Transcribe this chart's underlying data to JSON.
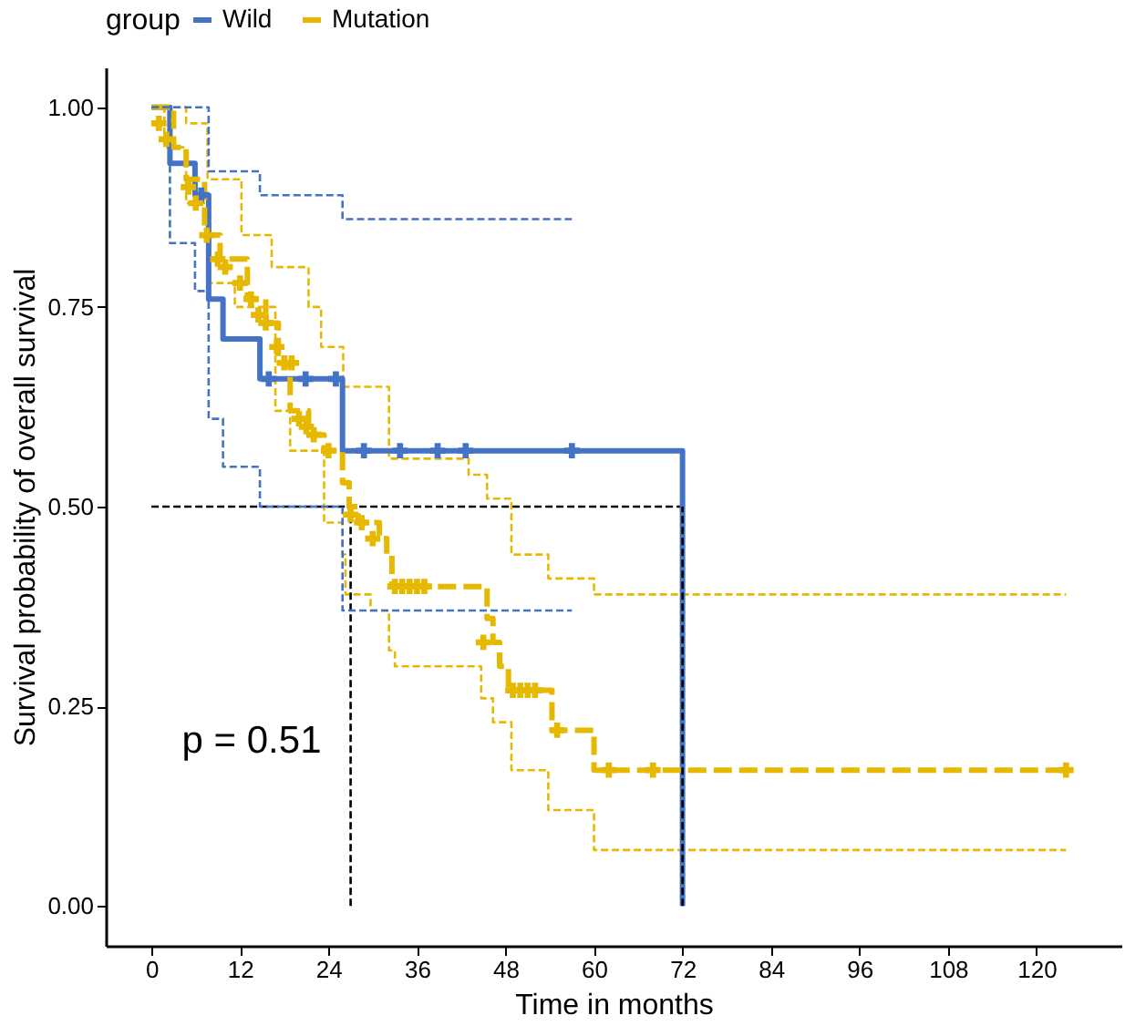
{
  "chart_data": {
    "type": "step",
    "xlabel": "Time in months",
    "ylabel": "Survival probability of overall survival",
    "legend_title": "group",
    "legend": "top",
    "grid": false,
    "annotations": [
      "p = 0.51"
    ],
    "xlim": [
      -6.2,
      131.5
    ],
    "ylim": [
      -0.05,
      1.05
    ],
    "xticks": [
      0,
      12,
      24,
      36,
      48,
      60,
      72,
      84,
      96,
      108,
      120
    ],
    "yticks": [
      {
        "value": 0,
        "label": "0.00"
      },
      {
        "value": 0.25,
        "label": "0.25"
      },
      {
        "value": 0.5,
        "label": "0.50"
      },
      {
        "value": 0.75,
        "label": "0.75"
      },
      {
        "value": 1,
        "label": "1.00"
      }
    ],
    "series": [
      {
        "color": "#e7b800",
        "line_style": "dashed",
        "x": [
          0,
          4.7,
          7.6,
          12.2,
          16.3,
          21.3,
          23,
          26,
          32.2,
          43,
          45.5,
          48.8,
          53.8,
          60,
          124
        ],
        "values": [
          1,
          0.98,
          0.91,
          0.84,
          0.8,
          0.75,
          0.7,
          0.65,
          0.56,
          0.54,
          0.51,
          0.44,
          0.41,
          0.39,
          0.39
        ]
      },
      {
        "color": "#e7b800",
        "line_style": "dashed",
        "x": [
          0,
          1.75,
          4.7,
          7.6,
          11.3,
          16.8,
          18.8,
          23.4,
          25.9,
          26.3,
          29.7,
          32.2,
          33,
          44.7,
          46.3,
          48.8,
          53.8,
          60,
          124
        ],
        "values": [
          1,
          0.95,
          0.88,
          0.78,
          0.75,
          0.62,
          0.57,
          0.48,
          0.44,
          0.39,
          0.37,
          0.32,
          0.3,
          0.26,
          0.23,
          0.17,
          0.12,
          0.07,
          0.07
        ]
      },
      {
        "type": "line",
        "color": "#000000",
        "line_style": "dashed",
        "x": [
          0,
          72
        ],
        "values": [
          0.5,
          0.5
        ]
      },
      {
        "type": "line",
        "color": "#000000",
        "line_style": "dashed",
        "x": [
          27,
          27
        ],
        "values": [
          0,
          0.5
        ]
      },
      {
        "name": "Wild",
        "color": "#4472c4",
        "line_style": "solid",
        "x": [
          0,
          2.5,
          5.9,
          7.75,
          9.7,
          14.7,
          25.9,
          72
        ],
        "values": [
          1,
          0.93,
          0.89,
          0.76,
          0.71,
          0.66,
          0.57,
          0
        ]
      },
      {
        "name": "Mutation",
        "color": "#e7b800",
        "line_style": "dashed",
        "x": [
          0,
          3,
          4.7,
          7.2,
          9.3,
          13,
          15.5,
          17.2,
          18.8,
          21.3,
          23.4,
          25.9,
          26.8,
          28,
          30.9,
          31.9,
          32.6,
          45.5,
          46.3,
          47.2,
          48.4,
          54.3,
          60,
          124
        ],
        "values": [
          1,
          0.95,
          0.91,
          0.84,
          0.81,
          0.76,
          0.73,
          0.68,
          0.62,
          0.59,
          0.57,
          0.53,
          0.5,
          0.48,
          0.46,
          0.44,
          0.4,
          0.36,
          0.33,
          0.3,
          0.27,
          0.22,
          0.17,
          0.17
        ]
      },
      {
        "type": "line",
        "color": "#000000",
        "line_style": "dashed",
        "x": [
          72,
          72
        ],
        "values": [
          0,
          0.5
        ]
      },
      {
        "color": "#4472c4",
        "line_style": "dashed",
        "x": [
          0,
          7.75,
          14.7,
          25.9,
          57
        ],
        "values": [
          1,
          0.92,
          0.89,
          0.86,
          0.86
        ]
      },
      {
        "color": "#4472c4",
        "line_style": "dashed",
        "x": [
          0,
          2.5,
          5.9,
          7.75,
          9.7,
          14.7,
          25.9,
          57
        ],
        "values": [
          1,
          0.83,
          0.77,
          0.61,
          0.55,
          0.5,
          0.37,
          0.37
        ]
      },
      {
        "type": "scatter",
        "marker": "cross",
        "color": "#4472c4",
        "x": [
          6.75,
          15.9,
          20.9,
          25,
          28.8,
          33.7,
          38.8,
          42.6,
          57
        ],
        "values": [
          0.89,
          0.66,
          0.66,
          0.66,
          0.57,
          0.57,
          0.57,
          0.57,
          0.57
        ]
      },
      {
        "type": "scatter",
        "marker": "cross",
        "color": "#e7b800",
        "x": [
          1,
          2,
          5,
          6,
          7.5,
          9,
          10,
          12,
          13.5,
          14.5,
          15.5,
          17,
          18,
          19,
          20,
          21,
          22,
          24,
          27,
          28.5,
          30,
          33,
          34,
          35,
          36,
          37,
          45,
          49,
          50,
          51,
          52,
          55,
          62,
          68,
          124
        ],
        "values": [
          0.98,
          0.96,
          0.9,
          0.88,
          0.84,
          0.81,
          0.8,
          0.78,
          0.76,
          0.74,
          0.73,
          0.7,
          0.68,
          0.68,
          0.61,
          0.6,
          0.59,
          0.57,
          0.49,
          0.48,
          0.46,
          0.4,
          0.4,
          0.4,
          0.4,
          0.4,
          0.33,
          0.27,
          0.27,
          0.27,
          0.27,
          0.22,
          0.17,
          0.17,
          0.17
        ]
      }
    ]
  }
}
